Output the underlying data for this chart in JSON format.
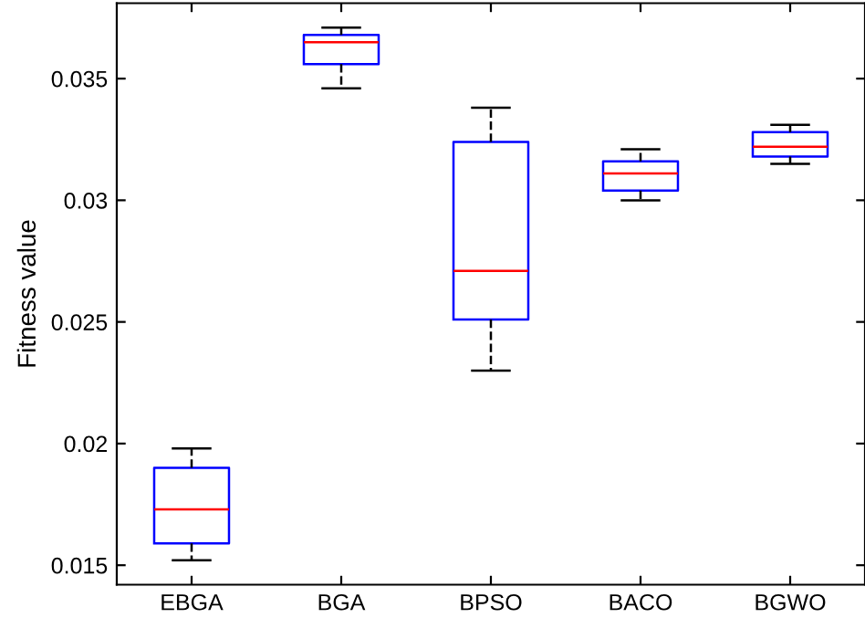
{
  "chart_data": {
    "type": "box",
    "ylabel": "Fitness value",
    "categories": [
      "EBGA",
      "BGA",
      "BPSO",
      "BACO",
      "BGWO"
    ],
    "boxes": [
      {
        "low": 0.0152,
        "q1": 0.0159,
        "median": 0.0173,
        "q3": 0.019,
        "high": 0.0198
      },
      {
        "low": 0.0346,
        "q1": 0.0356,
        "median": 0.0365,
        "q3": 0.0368,
        "high": 0.0371
      },
      {
        "low": 0.023,
        "q1": 0.0251,
        "median": 0.0271,
        "q3": 0.0324,
        "high": 0.0338
      },
      {
        "low": 0.03,
        "q1": 0.0304,
        "median": 0.0311,
        "q3": 0.0316,
        "high": 0.0321
      },
      {
        "low": 0.0315,
        "q1": 0.0318,
        "median": 0.0322,
        "q3": 0.0328,
        "high": 0.0331
      }
    ],
    "color": "#0000ff",
    "ylim": [
      0.0142,
      0.0381
    ],
    "yticks": [
      {
        "value": 0.015,
        "label": "0.015"
      },
      {
        "value": 0.02,
        "label": "0.02"
      },
      {
        "value": 0.025,
        "label": "0.025"
      },
      {
        "value": 0.03,
        "label": "0.03"
      },
      {
        "value": 0.035,
        "label": "0.035"
      }
    ],
    "grid": false,
    "line_style": "dashed"
  }
}
